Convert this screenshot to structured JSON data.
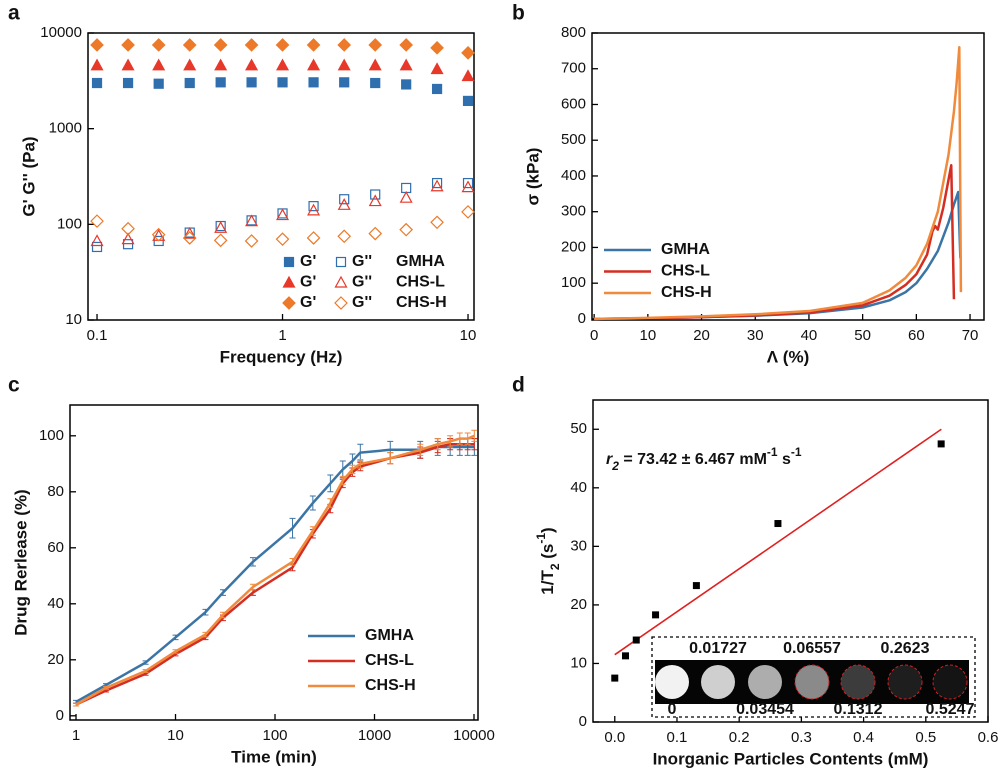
{
  "chart_data": [
    {
      "panel": "a",
      "type": "scatter",
      "xlabel": "Frequency (Hz)",
      "ylabel": "G'  G'' (Pa)",
      "xscale": "log",
      "yscale": "log",
      "xlim": [
        0.0894,
        10.77
      ],
      "ylim": [
        10,
        10000
      ],
      "xticks": [
        0.1,
        1,
        10
      ],
      "yticks": [
        10,
        100,
        1000,
        10000
      ],
      "moduli_labels": [
        "G'",
        "G''"
      ],
      "legend": "lower right",
      "x": [
        0.1,
        0.147,
        0.215,
        0.316,
        0.464,
        0.681,
        1,
        1.47,
        2.15,
        3.16,
        4.64,
        6.81,
        10
      ],
      "series": [
        {
          "name": "GMHA",
          "color": "#2f6fae",
          "marker": "square",
          "storage": [
            3000,
            3000,
            2950,
            3000,
            3050,
            3050,
            3050,
            3050,
            3050,
            3000,
            2900,
            2600,
            1950
          ],
          "loss": [
            58,
            62,
            67,
            82,
            96,
            110,
            130,
            155,
            183,
            205,
            240,
            270,
            270
          ]
        },
        {
          "name": "CHS-L",
          "color": "#e8382a",
          "marker": "triangle",
          "storage": [
            4600,
            4600,
            4600,
            4600,
            4600,
            4600,
            4600,
            4600,
            4600,
            4600,
            4600,
            4200,
            3550
          ],
          "loss": [
            67,
            70,
            76,
            80,
            92,
            108,
            125,
            140,
            160,
            175,
            190,
            250,
            245
          ]
        },
        {
          "name": "CHS-H",
          "color": "#ec7a2a",
          "marker": "diamond",
          "storage": [
            7500,
            7500,
            7500,
            7500,
            7500,
            7500,
            7500,
            7500,
            7500,
            7500,
            7500,
            7000,
            6200
          ],
          "loss": [
            108,
            90,
            78,
            72,
            68,
            67,
            70,
            72,
            75,
            80,
            88,
            105,
            135
          ]
        }
      ]
    },
    {
      "panel": "b",
      "type": "line",
      "xlabel": "Λ (%)",
      "ylabel": "σ (kPa)",
      "xlim": [
        -0.4,
        72.6
      ],
      "ylim": [
        -3,
        800
      ],
      "xticks": [
        0,
        10,
        20,
        30,
        40,
        50,
        60,
        70
      ],
      "yticks": [
        0,
        100,
        200,
        300,
        400,
        500,
        600,
        700,
        800
      ],
      "legend": "lower left",
      "series": [
        {
          "name": "GMHA",
          "color": "#3b75a6",
          "x": [
            0,
            10,
            20,
            30,
            40,
            50,
            55,
            58,
            60,
            62,
            64,
            66,
            67,
            67.8,
            68.2
          ],
          "values": [
            0,
            2,
            5,
            9,
            16,
            32,
            52,
            75,
            100,
            140,
            190,
            270,
            320,
            355,
            170
          ]
        },
        {
          "name": "CHS-L",
          "color": "#d42d22",
          "x": [
            0,
            10,
            20,
            30,
            40,
            50,
            55,
            58,
            60,
            62,
            63,
            63.5,
            64,
            65,
            66,
            66.5,
            67
          ],
          "values": [
            0,
            2,
            5,
            10,
            18,
            38,
            65,
            95,
            125,
            180,
            245,
            260,
            250,
            310,
            390,
            430,
            55
          ]
        },
        {
          "name": "CHS-H",
          "color": "#f08a3c",
          "x": [
            0,
            10,
            20,
            30,
            40,
            50,
            55,
            58,
            60,
            62,
            64,
            66,
            67,
            67.5,
            68,
            68.3
          ],
          "values": [
            0,
            3,
            7,
            13,
            22,
            45,
            80,
            115,
            150,
            210,
            300,
            460,
            580,
            660,
            760,
            75
          ]
        }
      ]
    },
    {
      "panel": "c",
      "type": "line",
      "xlabel": "Time (min)",
      "ylabel": "Drug Rerlease (%)",
      "xscale": "log",
      "xlim": [
        0.87,
        10970
      ],
      "ylim": [
        -1.5,
        111
      ],
      "xticks": [
        1,
        10,
        100,
        1000,
        10000
      ],
      "yticks": [
        0,
        20,
        40,
        60,
        80,
        100
      ],
      "legend": "lower right",
      "x": [
        1,
        2,
        5,
        10,
        20,
        30,
        60,
        150,
        240,
        360,
        480,
        600,
        720,
        1440,
        2880,
        4320,
        5760,
        7200,
        8640,
        10080
      ],
      "series": [
        {
          "name": "GMHA",
          "color": "#3b75a6",
          "values": [
            5,
            11,
            19,
            28,
            37,
            44,
            55,
            67,
            76,
            83,
            88,
            91,
            94,
            95,
            95,
            96,
            96,
            96,
            96,
            96
          ],
          "errors": [
            0.5,
            0.5,
            0.6,
            0.8,
            1,
            1,
            1.5,
            3.5,
            2.5,
            3,
            3,
            2.5,
            3,
            3,
            3,
            3,
            3,
            3,
            3,
            3
          ]
        },
        {
          "name": "CHS-L",
          "color": "#d42d22",
          "values": [
            4,
            9,
            15,
            22,
            28,
            35,
            44,
            53,
            65,
            74,
            83,
            87,
            89,
            92,
            94,
            96,
            97,
            97,
            97,
            97
          ],
          "errors": [
            0.5,
            0.5,
            0.5,
            0.6,
            0.8,
            1,
            1,
            1.2,
            1.5,
            1.5,
            1.5,
            1.5,
            1.5,
            2,
            2,
            2,
            2,
            2,
            2,
            2
          ]
        },
        {
          "name": "CHS-H",
          "color": "#f08a3c",
          "values": [
            4,
            10,
            16,
            23,
            29,
            36,
            46,
            55,
            66,
            76,
            84,
            88,
            90,
            92,
            95,
            97,
            98,
            99,
            99,
            100
          ],
          "errors": [
            0.5,
            0.5,
            0.5,
            0.6,
            0.8,
            1,
            1,
            1.2,
            1.5,
            1.5,
            1.5,
            1.5,
            1.5,
            2,
            2,
            2,
            2,
            2,
            2,
            2
          ]
        }
      ]
    },
    {
      "panel": "d",
      "type": "scatter",
      "xlabel": "Inorganic Particles Contents (mM)",
      "ylabel": [
        "1/T",
        "2",
        " (s",
        "-1",
        ")"
      ],
      "xlim": [
        -0.035,
        0.6
      ],
      "ylim": [
        0,
        55
      ],
      "xticks": [
        {
          "value": 0,
          "label": "0.0"
        },
        0.1,
        0.2,
        0.3,
        0.4,
        0.5,
        0.6
      ],
      "yticks": [
        0,
        10,
        20,
        30,
        40,
        50
      ],
      "annotation": [
        "r",
        "2",
        " = 73.42 ± 6.467 mM",
        "-1",
        " s",
        "-1"
      ],
      "color": "#000000",
      "x": [
        0,
        0.01727,
        0.03454,
        0.06557,
        0.1312,
        0.2623,
        0.5247
      ],
      "values": [
        7.5,
        11.3,
        14,
        18.3,
        23.3,
        33.9,
        47.5
      ],
      "fit": {
        "color": "#e02020",
        "x": [
          0,
          0.525
        ],
        "values": [
          11.5,
          50
        ]
      }
    }
  ]
}
